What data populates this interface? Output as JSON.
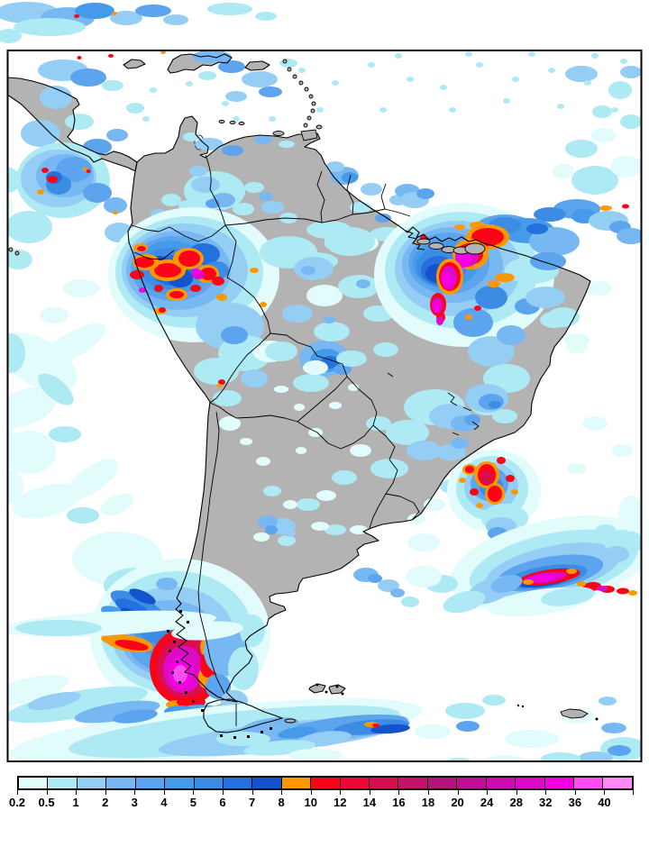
{
  "window": {
    "background": "#ffffff"
  },
  "map": {
    "frame_color": "#000000",
    "ocean_color": "#ffffff",
    "land_color": "#b3b3b3",
    "coastline_color": "#000000"
  },
  "colorbar": {
    "labels": [
      "0.2",
      "0.5",
      "1",
      "2",
      "3",
      "4",
      "5",
      "6",
      "7",
      "8",
      "10",
      "12",
      "14",
      "16",
      "18",
      "20",
      "24",
      "28",
      "32",
      "36",
      "40"
    ],
    "colors": [
      "#E2FBFB",
      "#AEEAF3",
      "#95CEF5",
      "#78B8F2",
      "#5CA4EE",
      "#459BEA",
      "#3D8CE4",
      "#2470DC",
      "#1453CC",
      "#FF9800",
      "#FA0418",
      "#EC0838",
      "#D90E50",
      "#C61168",
      "#B5147C",
      "#C20D98",
      "#CF0BAE",
      "#DF0AC8",
      "#F500E5",
      "#FF4DF0",
      "#FF8AF7"
    ]
  }
}
